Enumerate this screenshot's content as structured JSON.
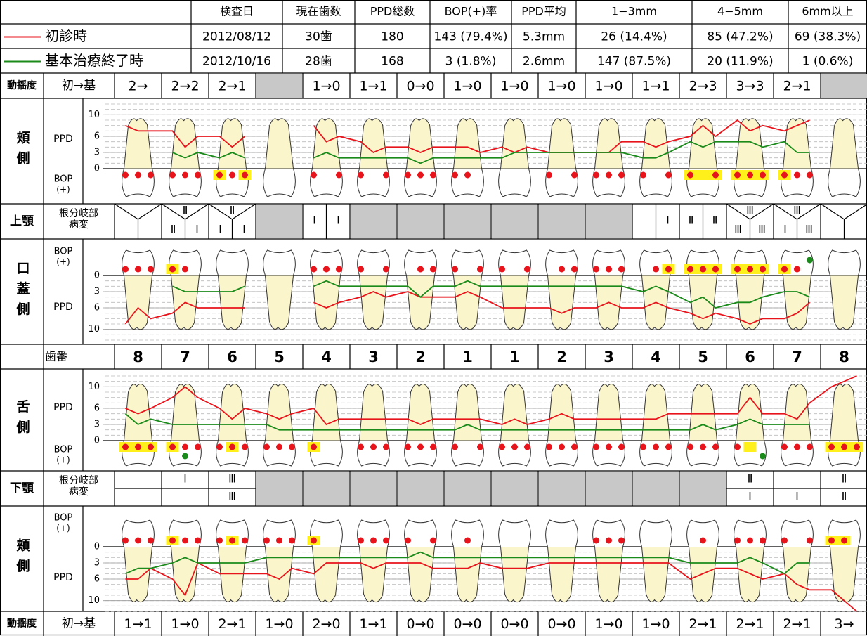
{
  "summary": {
    "headers": [
      "検査日",
      "現在歯数",
      "PPD総数",
      "BOP(+)率",
      "PPD平均",
      "1−3mm",
      "4−5mm",
      "6mm以上"
    ],
    "rows": [
      [
        "2012/08/12",
        "30歯",
        "180",
        "143 (79.4%)",
        "5.3mm",
        "26 (14.4%)",
        "85 (47.2%)",
        "69 (38.3%)"
      ],
      [
        "2012/10/16",
        "28歯",
        "168",
        "3 (1.8%)",
        "2.6mm",
        "147 (87.5%)",
        "20 (11.9%)",
        "1 (0.6%)"
      ]
    ]
  },
  "series": [
    {
      "name": "初診時",
      "color": "#e8141c"
    },
    {
      "name": "基本治療終了時",
      "color": "#1a8a1a"
    }
  ],
  "mobility_label": "動揺度",
  "mobility_sub": "初→基",
  "mobility_upper": [
    "2→",
    "2→2",
    "2→1",
    null,
    "1→0",
    "1→1",
    "0→0",
    "1→0",
    "1→0",
    "1→0",
    "1→0",
    "1→1",
    "2→3",
    "3→3",
    "2→1",
    null
  ],
  "mobility_lower": [
    "1→1",
    "1→0",
    "2→1",
    "1→0",
    "2→0",
    "1→1",
    "0→0",
    "0→0",
    "0→0",
    "0→0",
    "1→0",
    "1→0",
    "2→1",
    "2→1",
    "2→1",
    "3→"
  ],
  "upper_jaw": "上顎",
  "lower_jaw": "下顎",
  "furcation_label": [
    "根分岐部",
    "病変"
  ],
  "furcation_upper": [
    {},
    {
      "top": "Ⅱ",
      "left": "Ⅱ",
      "right": "Ⅰ"
    },
    {
      "top": "Ⅱ",
      "left": "Ⅰ",
      "right": "Ⅰ"
    },
    null,
    {
      "left": "Ⅰ",
      "right": "Ⅰ"
    },
    null,
    null,
    null,
    null,
    null,
    null,
    {
      "right": "Ⅰ"
    },
    {
      "left": "Ⅱ",
      "right": "Ⅱ"
    },
    {
      "top": "Ⅲ",
      "left": "Ⅲ",
      "right": "Ⅲ"
    },
    {
      "top": "Ⅲ",
      "left": "Ⅰ",
      "right": "Ⅲ"
    },
    {}
  ],
  "furcation_lower": [
    {},
    {
      "top": "Ⅰ"
    },
    {
      "top": "Ⅲ",
      "bottom": "Ⅲ"
    },
    null,
    null,
    null,
    null,
    null,
    null,
    null,
    null,
    null,
    null,
    {
      "top": "Ⅱ",
      "bottom": "Ⅰ"
    },
    {
      "bottom": "Ⅰ"
    },
    {
      "top": "Ⅱ",
      "bottom": "Ⅱ"
    }
  ],
  "tooth_numbers_label": "歯番",
  "tooth_numbers": [
    8,
    7,
    6,
    5,
    4,
    3,
    2,
    1,
    1,
    2,
    3,
    4,
    5,
    6,
    7,
    8
  ],
  "panels": [
    {
      "side": "頬側",
      "ppd_label": "PPD",
      "bop_label": [
        "BOP",
        "(+)"
      ],
      "direction": "up",
      "ylim": [
        0,
        12
      ],
      "yticks": [
        0,
        3,
        6,
        10
      ],
      "initial": [
        8,
        7,
        7,
        7,
        4,
        6,
        6,
        4,
        6,
        null,
        null,
        null,
        8,
        5,
        6,
        5,
        3,
        4,
        4,
        3,
        4,
        4,
        4,
        3,
        4,
        3,
        4,
        3,
        3,
        3,
        3,
        3,
        5,
        5,
        4,
        5,
        6,
        8,
        6,
        9,
        7,
        8,
        7,
        8,
        9,
        null,
        null,
        null
      ],
      "final": [
        null,
        null,
        null,
        3,
        2,
        3,
        2,
        3,
        2,
        null,
        null,
        null,
        2,
        3,
        2,
        2,
        2,
        2,
        2,
        1,
        2,
        2,
        2,
        2,
        2,
        3,
        3,
        3,
        3,
        3,
        3,
        3,
        3,
        2,
        2,
        3,
        5,
        4,
        5,
        5,
        5,
        4,
        5,
        3,
        3,
        null,
        null,
        null
      ],
      "bop_sites": [
        0,
        1,
        2,
        3,
        4,
        5,
        6,
        7,
        8,
        12,
        14,
        15,
        17,
        18,
        19,
        20,
        21,
        22,
        27,
        29,
        30,
        31,
        32,
        33,
        35,
        36,
        38,
        39,
        40,
        41,
        42,
        43,
        44
      ],
      "plaque_sites": [
        6,
        8,
        36,
        37,
        38,
        39,
        40,
        41,
        42
      ]
    },
    {
      "side": "口蓋側",
      "ppd_label": "PPD",
      "bop_label": [
        "BOP",
        "(+)"
      ],
      "direction": "down",
      "ylim": [
        0,
        12
      ],
      "yticks": [
        0,
        3,
        6,
        10
      ],
      "initial": [
        9,
        6,
        8,
        7,
        5,
        6,
        6,
        6,
        6,
        null,
        null,
        null,
        5,
        6,
        5,
        4,
        3,
        4,
        3,
        4,
        4,
        4,
        3,
        4,
        6,
        6,
        6,
        6,
        7,
        6,
        6,
        5,
        6,
        6,
        5,
        6,
        7,
        8,
        7,
        8,
        9,
        8,
        8,
        7,
        5,
        null,
        null,
        null
      ],
      "final": [
        null,
        null,
        null,
        2,
        3,
        3,
        3,
        3,
        2,
        null,
        null,
        null,
        2,
        1,
        2,
        2,
        2,
        2,
        2,
        4,
        2,
        2,
        1,
        2,
        2,
        2,
        2,
        2,
        2,
        2,
        2,
        2,
        2,
        3,
        2,
        3,
        5,
        4,
        6,
        5,
        5,
        4,
        3,
        3,
        4,
        null,
        null,
        null
      ],
      "bop_sites": [
        0,
        1,
        2,
        3,
        4,
        12,
        13,
        14,
        15,
        17,
        19,
        20,
        21,
        23,
        24,
        26,
        28,
        29,
        30,
        31,
        32,
        34,
        35,
        36,
        37,
        38,
        39,
        40,
        41,
        42,
        43
      ],
      "plaque_sites": [
        3,
        35,
        36,
        37,
        38,
        39,
        40,
        41,
        42
      ],
      "green_sites": [
        44
      ]
    },
    {
      "side": "舌側",
      "ppd_label": "PPD",
      "bop_label": [
        "BOP",
        "(+)"
      ],
      "direction": "up",
      "ylim": [
        0,
        12
      ],
      "yticks": [
        0,
        3,
        6,
        10
      ],
      "initial": [
        6,
        5,
        6,
        8,
        10,
        8,
        6,
        4,
        6,
        5,
        4,
        5,
        6,
        3,
        4,
        4,
        4,
        4,
        4,
        3,
        4,
        4,
        4,
        4,
        3,
        4,
        3,
        4,
        5,
        4,
        4,
        4,
        4,
        4,
        4,
        5,
        5,
        5,
        5,
        5,
        8,
        5,
        5,
        4,
        7,
        10,
        11,
        12
      ],
      "final": [
        5,
        3,
        4,
        3,
        3,
        3,
        3,
        3,
        3,
        3,
        2,
        2,
        2,
        2,
        2,
        2,
        2,
        2,
        2,
        2,
        2,
        2,
        3,
        2,
        2,
        2,
        2,
        2,
        2,
        2,
        2,
        2,
        2,
        2,
        2,
        2,
        2,
        3,
        2,
        3,
        4,
        3,
        3,
        3,
        3,
        null,
        null,
        null
      ],
      "bop_sites": [
        0,
        1,
        2,
        3,
        4,
        5,
        6,
        7,
        8,
        9,
        10,
        11,
        12,
        15,
        16,
        17,
        18,
        19,
        20,
        21,
        23,
        24,
        25,
        26,
        27,
        28,
        29,
        30,
        31,
        32,
        33,
        34,
        35,
        36,
        37,
        38,
        39,
        42,
        43,
        44,
        45,
        46,
        47
      ],
      "plaque_sites": [
        0,
        1,
        2,
        3,
        7,
        12,
        40,
        45,
        46,
        47
      ],
      "green_sites": [
        4,
        41
      ]
    },
    {
      "side": "頬側",
      "ppd_label": "PPD",
      "bop_label": [
        "BOP",
        "(+)"
      ],
      "direction": "down",
      "ylim": [
        0,
        12
      ],
      "yticks": [
        0,
        3,
        6,
        10
      ],
      "initial": [
        6,
        6,
        4,
        6,
        9,
        3,
        5,
        5,
        5,
        5,
        6,
        4,
        5,
        3,
        3,
        3,
        4,
        3,
        3,
        3,
        4,
        4,
        4,
        3,
        4,
        4,
        4,
        3,
        3,
        3,
        3,
        3,
        3,
        3,
        3,
        3,
        6,
        5,
        4,
        4,
        5,
        6,
        5,
        7,
        8,
        8,
        10,
        12
      ],
      "final": [
        5,
        4,
        4,
        3,
        2,
        3,
        3,
        3,
        3,
        2,
        2,
        2,
        2,
        2,
        2,
        2,
        2,
        2,
        2,
        1,
        2,
        2,
        2,
        2,
        2,
        2,
        2,
        2,
        2,
        2,
        2,
        2,
        2,
        2,
        2,
        2,
        3,
        3,
        3,
        3,
        2,
        3,
        5,
        3,
        3,
        null,
        null,
        null
      ],
      "bop_sites": [
        0,
        1,
        2,
        3,
        4,
        5,
        6,
        7,
        8,
        9,
        10,
        11,
        12,
        15,
        16,
        17,
        18,
        20,
        22,
        30,
        31,
        32,
        37,
        39,
        40,
        41,
        42,
        44,
        45,
        46
      ],
      "plaque_sites": [
        3,
        7,
        12,
        45,
        46
      ]
    }
  ]
}
